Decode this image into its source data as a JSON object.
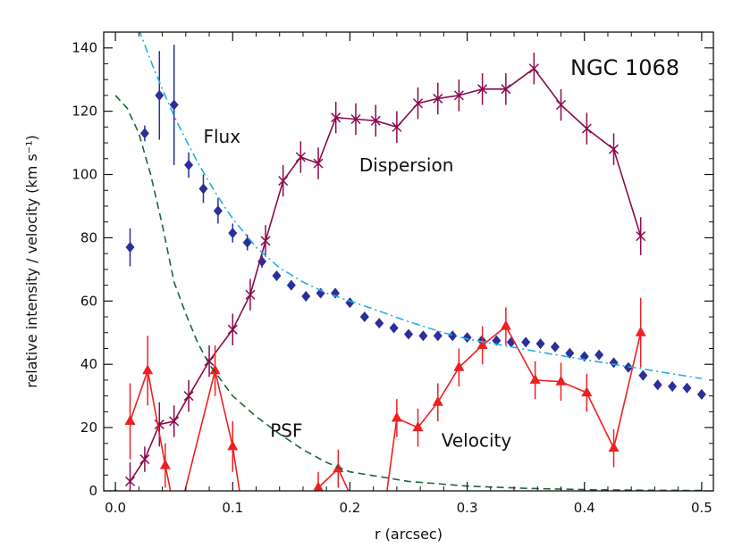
{
  "chart_data": {
    "type": "scatter",
    "title": "NGC 1068",
    "xlabel": "r (arcsec)",
    "ylabel": "relative intensity / velocity (km s⁻¹)",
    "xlim": [
      -0.01,
      0.51
    ],
    "ylim": [
      0,
      145
    ],
    "xticks": [
      0.0,
      0.1,
      0.2,
      0.3,
      0.4,
      0.5
    ],
    "xtick_labels": [
      "0.0",
      "0.1",
      "0.2",
      "0.3",
      "0.4",
      "0.5"
    ],
    "yticks": [
      0,
      20,
      40,
      60,
      80,
      100,
      120,
      140
    ],
    "ytick_labels": [
      "0",
      "20",
      "40",
      "60",
      "80",
      "100",
      "120",
      "140"
    ],
    "grid": false,
    "annotations": [
      {
        "text": "Flux",
        "x": 0.075,
        "y": 110
      },
      {
        "text": "Dispersion",
        "x": 0.208,
        "y": 101
      },
      {
        "text": "PSF",
        "x": 0.132,
        "y": 17
      },
      {
        "text": "Velocity",
        "x": 0.278,
        "y": 14
      }
    ],
    "series": [
      {
        "name": "Flux",
        "kind": "diamond-errorbar",
        "color": "#2b2f9a",
        "x": [
          0.0,
          0.0125,
          0.025,
          0.0375,
          0.05,
          0.0625,
          0.075,
          0.0875,
          0.1,
          0.1125,
          0.125,
          0.1375,
          0.15,
          0.1625,
          0.175,
          0.1875,
          0.2,
          0.2125,
          0.225,
          0.2375,
          0.25,
          0.2625,
          0.275,
          0.2875,
          0.3,
          0.3125,
          0.325,
          0.3375,
          0.35,
          0.3625,
          0.375,
          0.3875,
          0.4,
          0.4125,
          0.425,
          0.4375,
          0.45,
          0.4625,
          0.475,
          0.4875,
          0.5
        ],
        "y": [
          -1,
          77,
          113,
          125,
          122,
          103,
          95.5,
          88.5,
          81.5,
          78.5,
          72.5,
          68,
          65,
          61.5,
          62.5,
          62.5,
          59.5,
          55,
          53,
          51.5,
          49.5,
          49,
          49,
          49,
          48.5,
          47.5,
          47.5,
          47,
          47,
          46.5,
          45.5,
          43.5,
          42.5,
          43,
          40.5,
          39,
          36.5,
          33.5,
          33,
          32.5,
          30.5
        ],
        "err": [
          1,
          6,
          2.5,
          14,
          19,
          4,
          4.5,
          4,
          3,
          2.5,
          2,
          1.5,
          1.5,
          1.5,
          1.5,
          1.5,
          1,
          1,
          1,
          1,
          1,
          1,
          1,
          1,
          1,
          1,
          1,
          1,
          1,
          1,
          1,
          1,
          1,
          1,
          1,
          1,
          1.5,
          1.5,
          1.5,
          1.5,
          1.5
        ]
      },
      {
        "name": "Dispersion",
        "kind": "x-line-errorbar",
        "color": "#8c0a4e",
        "x": [
          0.0125,
          0.025,
          0.0375,
          0.05,
          0.0625,
          0.08,
          0.1,
          0.115,
          0.128,
          0.143,
          0.158,
          0.173,
          0.188,
          0.205,
          0.222,
          0.24,
          0.258,
          0.275,
          0.293,
          0.313,
          0.333,
          0.357,
          0.38,
          0.402,
          0.425,
          0.448
        ],
        "y": [
          3,
          10,
          21,
          22,
          30,
          41,
          51,
          62,
          79,
          98,
          105.5,
          103.5,
          118,
          117.5,
          117,
          115,
          122.5,
          124,
          125,
          127,
          127,
          133.5,
          122,
          114.5,
          108,
          80.5
        ],
        "err": [
          6,
          4,
          7,
          5,
          5,
          5,
          5,
          5,
          5,
          5,
          5,
          5,
          5,
          5,
          5,
          5,
          5,
          5,
          5,
          5,
          5,
          5,
          5,
          5,
          5,
          6
        ]
      },
      {
        "name": "Velocity",
        "kind": "triangle-line-errorbar",
        "color": "#ee2020",
        "x": [
          0.0125,
          0.0275,
          0.0425,
          0.0525,
          0.085,
          0.1,
          0.11,
          0.145,
          0.173,
          0.19,
          0.205,
          0.228,
          0.24,
          0.258,
          0.275,
          0.293,
          0.313,
          0.333,
          0.358,
          0.38,
          0.402,
          0.425,
          0.448
        ],
        "y": [
          22,
          38,
          8,
          -10,
          38,
          14,
          -10,
          -10,
          1,
          7,
          -5,
          -10,
          23,
          20,
          28,
          39,
          46,
          52,
          35,
          34.5,
          31,
          13.5,
          50
        ],
        "err": [
          12,
          11,
          7,
          10,
          8,
          8,
          10,
          10,
          5,
          6,
          5,
          10,
          6,
          6,
          6,
          6,
          6,
          6,
          6,
          6,
          6,
          6,
          11
        ]
      },
      {
        "name": "Flux model",
        "kind": "dash-dot-line",
        "color": "#22b0e0",
        "x": [
          0.02,
          0.025,
          0.03,
          0.04,
          0.05,
          0.06,
          0.07,
          0.08,
          0.09,
          0.1,
          0.12,
          0.14,
          0.16,
          0.18,
          0.2,
          0.22,
          0.25,
          0.28,
          0.3,
          0.33,
          0.36,
          0.4,
          0.45,
          0.5
        ],
        "y": [
          146,
          141,
          136,
          127,
          118.5,
          111,
          104,
          97.5,
          91.5,
          86,
          77,
          70.5,
          66,
          62.5,
          60,
          57.5,
          53.5,
          50,
          48,
          46,
          44,
          41.5,
          38.5,
          35.5
        ]
      },
      {
        "name": "PSF",
        "kind": "dashed-line",
        "color": "#1a6a38",
        "x": [
          0.0,
          0.01,
          0.02,
          0.03,
          0.04,
          0.05,
          0.06,
          0.07,
          0.08,
          0.09,
          0.1,
          0.12,
          0.14,
          0.16,
          0.18,
          0.2,
          0.25,
          0.3,
          0.35,
          0.4,
          0.45,
          0.5
        ],
        "y": [
          125,
          121,
          113,
          100,
          84,
          66,
          56,
          47,
          40,
          35,
          30,
          23.5,
          18,
          13,
          9,
          6,
          3,
          1.5,
          0.8,
          0.4,
          0.2,
          0.1
        ]
      }
    ]
  }
}
